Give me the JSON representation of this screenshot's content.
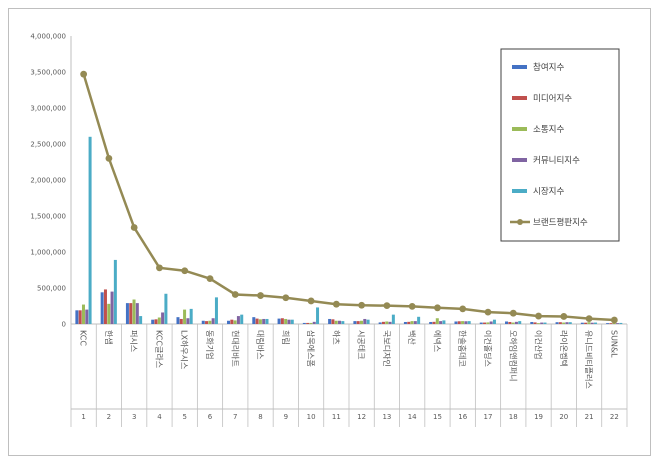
{
  "chart_data": {
    "type": "bar",
    "categories": [
      "KCC",
      "한샘",
      "퍼시스",
      "KCC글라스",
      "LX하우시스",
      "동화기업",
      "현대리바트",
      "대림바스",
      "희림",
      "삼목에스폼",
      "하츠",
      "시공테크",
      "국보디자인",
      "백산",
      "에넥스",
      "한솔홈데코",
      "이건홀딩스",
      "오하임앤컴퍼니",
      "이건산업",
      "라이온켐텍",
      "유니드비티플러스",
      "SUN&L"
    ],
    "numbers": [
      "1",
      "2",
      "3",
      "4",
      "5",
      "6",
      "7",
      "8",
      "9",
      "10",
      "11",
      "12",
      "13",
      "14",
      "15",
      "16",
      "17",
      "18",
      "19",
      "20",
      "21",
      "22"
    ],
    "ylim": [
      0,
      4000000
    ],
    "yticks": [
      "0",
      "500,000",
      "1,000,000",
      "1,500,000",
      "2,000,000",
      "2,500,000",
      "3,000,000",
      "3,500,000",
      "4,000,000"
    ],
    "series": [
      {
        "name": "참여지수",
        "color": "#4472c4",
        "values": [
          190000,
          440000,
          290000,
          60000,
          95000,
          45000,
          45000,
          95000,
          75000,
          15000,
          70000,
          40000,
          22000,
          28000,
          28000,
          35000,
          20000,
          35000,
          28000,
          25000,
          18000,
          12000
        ]
      },
      {
        "name": "미디어지수",
        "color": "#c0504d",
        "values": [
          190000,
          480000,
          290000,
          65000,
          70000,
          40000,
          60000,
          75000,
          80000,
          15000,
          65000,
          40000,
          30000,
          30000,
          30000,
          38000,
          20000,
          28000,
          22000,
          25000,
          18000,
          12000
        ]
      },
      {
        "name": "소통지수",
        "color": "#9bbb59",
        "values": [
          270000,
          280000,
          340000,
          90000,
          200000,
          45000,
          50000,
          65000,
          70000,
          15000,
          45000,
          45000,
          35000,
          40000,
          80000,
          40000,
          22000,
          20000,
          12000,
          20000,
          25000,
          15000
        ]
      },
      {
        "name": "커뮤니티지수",
        "color": "#8064a2",
        "values": [
          200000,
          450000,
          290000,
          160000,
          80000,
          80000,
          110000,
          70000,
          60000,
          30000,
          45000,
          70000,
          30000,
          40000,
          40000,
          38000,
          35000,
          30000,
          20000,
          25000,
          18000,
          12000
        ]
      },
      {
        "name": "시장지수",
        "color": "#4bacc6",
        "values": [
          2600000,
          890000,
          110000,
          420000,
          210000,
          370000,
          130000,
          70000,
          60000,
          230000,
          40000,
          60000,
          130000,
          100000,
          50000,
          40000,
          60000,
          40000,
          20000,
          25000,
          20000,
          15000
        ]
      }
    ],
    "line": {
      "name": "브랜드평판지수",
      "color": "#948a54",
      "values": [
        3470000,
        2300000,
        1340000,
        780000,
        740000,
        630000,
        410000,
        395000,
        365000,
        320000,
        275000,
        260000,
        255000,
        245000,
        225000,
        210000,
        165000,
        150000,
        110000,
        105000,
        75000,
        55000
      ]
    },
    "grid": false,
    "legend": "right"
  }
}
